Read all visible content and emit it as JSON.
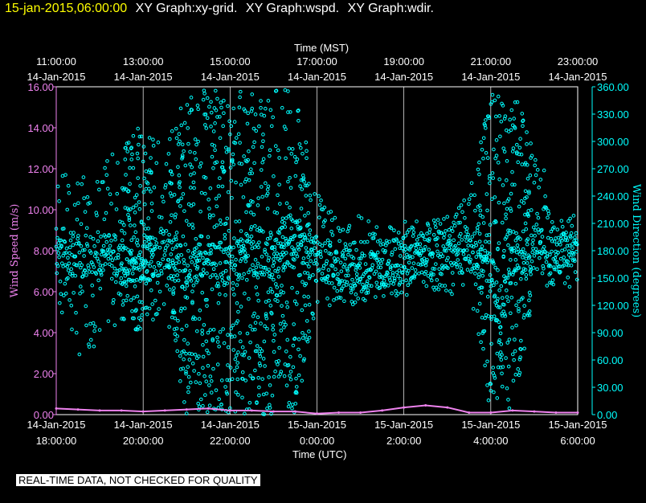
{
  "header": {
    "timestamp": "15-jan-2015,06:00:00",
    "graphs": [
      "XY Graph:xy-grid.",
      "XY Graph:wspd.",
      "XY Graph:wdir."
    ]
  },
  "disclaimer": "REAL-TIME DATA, NOT CHECKED FOR QUALITY",
  "colors": {
    "wspd": "#ee82ee",
    "wdir": "#00ffff",
    "grid": "#ffffff",
    "background": "#000000",
    "timestamp": "#ffff00"
  },
  "chart_data": {
    "type": "scatter",
    "title": "",
    "top_axis": {
      "label": "Time (MST)",
      "ticks": [
        {
          "hour": 0,
          "time": "11:00:00",
          "date": "14-Jan-2015"
        },
        {
          "hour": 2,
          "time": "13:00:00",
          "date": "14-Jan-2015"
        },
        {
          "hour": 4,
          "time": "15:00:00",
          "date": "14-Jan-2015"
        },
        {
          "hour": 6,
          "time": "17:00:00",
          "date": "14-Jan-2015"
        },
        {
          "hour": 8,
          "time": "19:00:00",
          "date": "14-Jan-2015"
        },
        {
          "hour": 10,
          "time": "21:00:00",
          "date": "14-Jan-2015"
        },
        {
          "hour": 12,
          "time": "23:00:00",
          "date": "14-Jan-2015"
        }
      ]
    },
    "bottom_axis": {
      "label": "Time (UTC)",
      "xlim": [
        0,
        12
      ],
      "ticks": [
        {
          "hour": 0,
          "date": "14-Jan-2015",
          "time": "18:00:00"
        },
        {
          "hour": 2,
          "date": "14-Jan-2015",
          "time": "20:00:00"
        },
        {
          "hour": 4,
          "date": "14-Jan-2015",
          "time": "22:00:00"
        },
        {
          "hour": 6,
          "date": "15-Jan-2015",
          "time": "0:00:00"
        },
        {
          "hour": 8,
          "date": "15-Jan-2015",
          "time": "2:00:00"
        },
        {
          "hour": 10,
          "date": "15-Jan-2015",
          "time": "4:00:00"
        },
        {
          "hour": 12,
          "date": "15-Jan-2015",
          "time": "6:00:00"
        }
      ]
    },
    "left_axis": {
      "label": "Wind Speed (m/s)",
      "ylim": [
        0,
        16
      ],
      "ticks": [
        "0.00",
        "2.00",
        "4.00",
        "6.00",
        "8.00",
        "10.00",
        "12.00",
        "14.00",
        "16.00"
      ]
    },
    "right_axis": {
      "label": "Wind Direction (degrees)",
      "ylim": [
        0,
        360
      ],
      "ticks": [
        "0.00",
        "30.00",
        "60.00",
        "90.00",
        "120.00",
        "150.00",
        "180.00",
        "210.00",
        "240.00",
        "270.00",
        "300.00",
        "330.00",
        "360.00"
      ]
    },
    "grid": true,
    "series": [
      {
        "name": "wspd",
        "axis": "left",
        "style": "line",
        "x": [
          0.0,
          0.5,
          1.0,
          1.5,
          2.0,
          2.5,
          3.0,
          3.5,
          4.0,
          4.5,
          5.0,
          5.5,
          6.0,
          6.5,
          7.0,
          7.5,
          8.0,
          8.5,
          9.0,
          9.5,
          10.0,
          10.5,
          11.0,
          11.5,
          12.0
        ],
        "y": [
          0.3,
          0.25,
          0.2,
          0.2,
          0.15,
          0.2,
          0.25,
          0.3,
          0.2,
          0.2,
          0.15,
          0.15,
          0.05,
          0.1,
          0.1,
          0.2,
          0.35,
          0.45,
          0.35,
          0.1,
          0.1,
          0.2,
          0.15,
          0.1,
          0.1
        ]
      },
      {
        "name": "wdir",
        "axis": "right",
        "style": "points",
        "x": [
          0.0,
          0.5,
          1.0,
          1.5,
          2.0,
          2.5,
          3.0,
          3.5,
          4.0,
          4.5,
          5.0,
          5.5,
          6.0,
          6.5,
          7.0,
          7.5,
          8.0,
          8.5,
          9.0,
          9.5,
          10.0,
          10.2,
          10.5,
          11.0,
          11.5,
          12.0
        ],
        "y": [
          185,
          175,
          180,
          165,
          170,
          180,
          155,
          170,
          160,
          180,
          175,
          190,
          170,
          160,
          155,
          165,
          170,
          175,
          180,
          180,
          165,
          90,
          175,
          185,
          180,
          180
        ],
        "spread_low": [
          120,
          60,
          80,
          100,
          90,
          120,
          0,
          0,
          0,
          0,
          0,
          0,
          120,
          120,
          120,
          130,
          130,
          140,
          130,
          140,
          0,
          0,
          0,
          130,
          140,
          130
        ],
        "spread_high": [
          270,
          260,
          270,
          300,
          320,
          290,
          360,
          360,
          360,
          360,
          360,
          360,
          250,
          210,
          220,
          210,
          220,
          210,
          220,
          240,
          360,
          360,
          360,
          300,
          230,
          220
        ]
      }
    ]
  }
}
